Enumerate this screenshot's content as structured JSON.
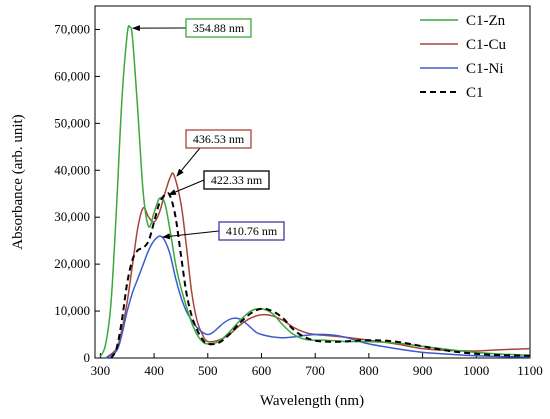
{
  "chart_data": {
    "type": "line",
    "title": "",
    "xlabel": "Wavelength (nm)",
    "ylabel": "Absorbance (arb. unit)",
    "xlim": [
      290,
      1100
    ],
    "ylim": [
      0,
      75000
    ],
    "xticks": [
      300,
      400,
      500,
      600,
      700,
      800,
      900,
      1000,
      1100
    ],
    "yticks": [
      0,
      10000,
      20000,
      30000,
      40000,
      50000,
      60000,
      70000
    ],
    "xtick_labels": [
      "300",
      "400",
      "500",
      "600",
      "700",
      "800",
      "900",
      "1000",
      "1100"
    ],
    "ytick_labels": [
      "0",
      "10,000",
      "20,000",
      "30,000",
      "40,000",
      "50,000",
      "60,000",
      "70,000"
    ],
    "grid": false,
    "legend_position": "top-right",
    "series": [
      {
        "name": "C1-Zn",
        "color": "#3aa83a",
        "dash": "solid",
        "points": [
          [
            300,
            300
          ],
          [
            310,
            3000
          ],
          [
            320,
            12000
          ],
          [
            330,
            32000
          ],
          [
            340,
            55000
          ],
          [
            350,
            69000
          ],
          [
            355,
            70500
          ],
          [
            360,
            68000
          ],
          [
            370,
            52000
          ],
          [
            380,
            35000
          ],
          [
            390,
            28000
          ],
          [
            400,
            31000
          ],
          [
            410,
            34000
          ],
          [
            420,
            33000
          ],
          [
            430,
            27000
          ],
          [
            440,
            20000
          ],
          [
            450,
            15000
          ],
          [
            460,
            11000
          ],
          [
            470,
            7500
          ],
          [
            480,
            5000
          ],
          [
            490,
            3500
          ],
          [
            500,
            3000
          ],
          [
            520,
            3500
          ],
          [
            540,
            5500
          ],
          [
            560,
            8000
          ],
          [
            580,
            10000
          ],
          [
            600,
            10500
          ],
          [
            620,
            9500
          ],
          [
            640,
            7000
          ],
          [
            660,
            5000
          ],
          [
            680,
            4000
          ],
          [
            700,
            3800
          ],
          [
            720,
            3800
          ],
          [
            760,
            3500
          ],
          [
            800,
            3500
          ],
          [
            850,
            3200
          ],
          [
            900,
            2500
          ],
          [
            950,
            1800
          ],
          [
            1000,
            1200
          ],
          [
            1050,
            800
          ],
          [
            1100,
            600
          ]
        ]
      },
      {
        "name": "C1-Cu",
        "color": "#a8453a",
        "dash": "solid",
        "points": [
          [
            310,
            0
          ],
          [
            330,
            2000
          ],
          [
            340,
            6000
          ],
          [
            350,
            12000
          ],
          [
            360,
            20000
          ],
          [
            370,
            28000
          ],
          [
            380,
            32000
          ],
          [
            390,
            30000
          ],
          [
            400,
            29000
          ],
          [
            410,
            31000
          ],
          [
            420,
            35000
          ],
          [
            430,
            38500
          ],
          [
            437,
            39000
          ],
          [
            450,
            33000
          ],
          [
            460,
            24000
          ],
          [
            470,
            14000
          ],
          [
            480,
            8000
          ],
          [
            490,
            5000
          ],
          [
            500,
            3500
          ],
          [
            520,
            3800
          ],
          [
            540,
            5000
          ],
          [
            560,
            7000
          ],
          [
            580,
            8500
          ],
          [
            600,
            9200
          ],
          [
            620,
            9000
          ],
          [
            640,
            8000
          ],
          [
            660,
            6500
          ],
          [
            680,
            5500
          ],
          [
            700,
            5000
          ],
          [
            750,
            4500
          ],
          [
            800,
            3800
          ],
          [
            850,
            3000
          ],
          [
            900,
            2000
          ],
          [
            950,
            1600
          ],
          [
            1000,
            1500
          ],
          [
            1050,
            1800
          ],
          [
            1100,
            2000
          ]
        ]
      },
      {
        "name": "C1-Ni",
        "color": "#3a5bd0",
        "dash": "solid",
        "points": [
          [
            310,
            0
          ],
          [
            330,
            1500
          ],
          [
            340,
            5000
          ],
          [
            350,
            10000
          ],
          [
            360,
            14000
          ],
          [
            370,
            17000
          ],
          [
            380,
            20000
          ],
          [
            390,
            23000
          ],
          [
            400,
            25000
          ],
          [
            411,
            26000
          ],
          [
            420,
            25000
          ],
          [
            430,
            22000
          ],
          [
            440,
            17000
          ],
          [
            450,
            13000
          ],
          [
            460,
            10000
          ],
          [
            470,
            8000
          ],
          [
            480,
            6500
          ],
          [
            490,
            5500
          ],
          [
            500,
            5000
          ],
          [
            510,
            5500
          ],
          [
            520,
            6500
          ],
          [
            530,
            7500
          ],
          [
            540,
            8200
          ],
          [
            550,
            8500
          ],
          [
            560,
            8300
          ],
          [
            570,
            7500
          ],
          [
            580,
            6500
          ],
          [
            590,
            5500
          ],
          [
            600,
            5000
          ],
          [
            620,
            4500
          ],
          [
            640,
            4300
          ],
          [
            660,
            4500
          ],
          [
            680,
            4800
          ],
          [
            700,
            5000
          ],
          [
            720,
            5000
          ],
          [
            740,
            4800
          ],
          [
            760,
            4300
          ],
          [
            780,
            3600
          ],
          [
            800,
            3000
          ],
          [
            850,
            2000
          ],
          [
            900,
            1200
          ],
          [
            950,
            800
          ],
          [
            1000,
            500
          ],
          [
            1050,
            300
          ],
          [
            1100,
            200
          ]
        ]
      },
      {
        "name": "C1",
        "color": "#000000",
        "dash": "dashed",
        "points": [
          [
            320,
            0
          ],
          [
            330,
            2000
          ],
          [
            340,
            8000
          ],
          [
            350,
            16000
          ],
          [
            360,
            21000
          ],
          [
            370,
            23000
          ],
          [
            380,
            23500
          ],
          [
            390,
            25000
          ],
          [
            400,
            29000
          ],
          [
            410,
            33000
          ],
          [
            422,
            35000
          ],
          [
            430,
            34500
          ],
          [
            440,
            30000
          ],
          [
            450,
            22000
          ],
          [
            460,
            14000
          ],
          [
            470,
            9000
          ],
          [
            480,
            6000
          ],
          [
            490,
            4000
          ],
          [
            500,
            3000
          ],
          [
            520,
            3200
          ],
          [
            540,
            5000
          ],
          [
            560,
            7500
          ],
          [
            580,
            9500
          ],
          [
            600,
            10500
          ],
          [
            620,
            10000
          ],
          [
            640,
            8500
          ],
          [
            660,
            6000
          ],
          [
            680,
            4500
          ],
          [
            700,
            3700
          ],
          [
            720,
            3500
          ],
          [
            750,
            3500
          ],
          [
            800,
            3800
          ],
          [
            850,
            3500
          ],
          [
            900,
            2500
          ],
          [
            950,
            1500
          ],
          [
            1000,
            900
          ],
          [
            1050,
            600
          ],
          [
            1100,
            500
          ]
        ]
      }
    ],
    "annotations": [
      {
        "text": "354.88 nm",
        "border_color": "#3aa83a",
        "arrow_to": [
          355,
          70500
        ]
      },
      {
        "text": "436.53 nm",
        "border_color": "#a8453a",
        "arrow_to": [
          437,
          39000
        ]
      },
      {
        "text": "422.33 nm",
        "border_color": "#000000",
        "arrow_to": [
          422,
          35000
        ]
      },
      {
        "text": "410.76 nm",
        "border_color": "#3a3aa0",
        "arrow_to": [
          411,
          26000
        ]
      }
    ]
  }
}
